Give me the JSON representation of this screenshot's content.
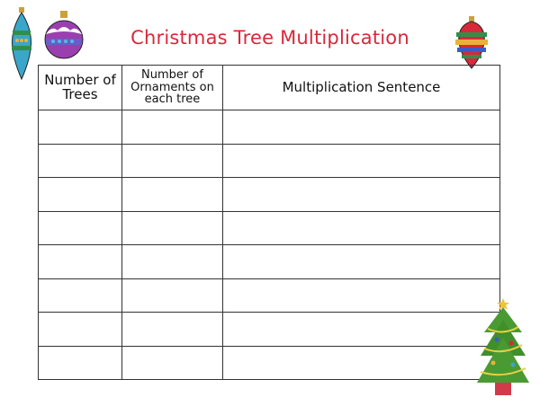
{
  "title": "Christmas Tree Multiplication",
  "table": {
    "headers": [
      "Number of Trees",
      "Number of Ornaments on each tree",
      "Multiplication Sentence"
    ],
    "rows": [
      [
        "",
        "",
        ""
      ],
      [
        "",
        "",
        ""
      ],
      [
        "",
        "",
        ""
      ],
      [
        "",
        "",
        ""
      ],
      [
        "",
        "",
        ""
      ],
      [
        "",
        "",
        ""
      ],
      [
        "",
        "",
        ""
      ],
      [
        "",
        "",
        ""
      ]
    ]
  },
  "decorations": [
    "ornament-teardrop-icon",
    "ornament-round-purple-icon",
    "ornament-round-striped-icon",
    "christmas-tree-icon"
  ],
  "colors": {
    "title": "#d8283a",
    "grid": "#333333"
  }
}
